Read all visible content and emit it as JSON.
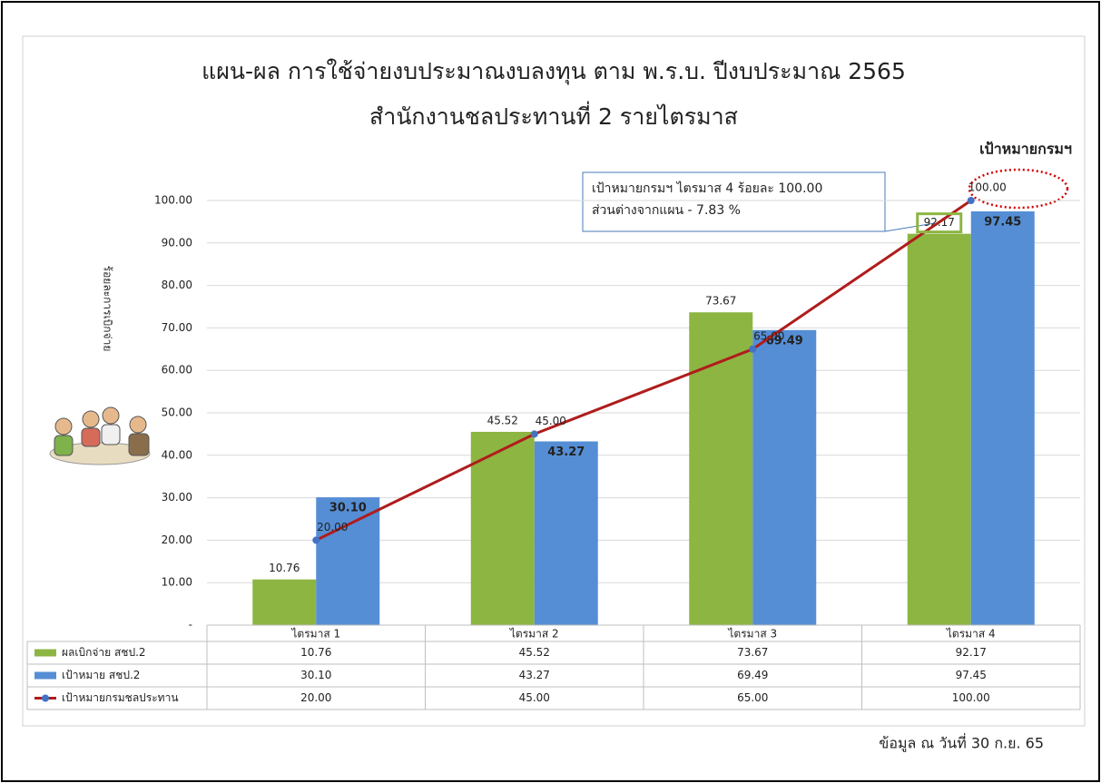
{
  "chart_data": {
    "type": "bar",
    "title": "แผน-ผล การใช้จ่ายงบประมาณงบลงทุน ตาม พ.ร.บ. ปีงบประมาณ 2565",
    "subtitle": "สำนักงานชลประทานที่ 2 รายไตรมาส",
    "y_label": "ร้อยละการเบิกจ่าย",
    "categories": [
      "ไตรมาส 1",
      "ไตรมาส 2",
      "ไตรมาส 3",
      "ไตรมาส 4"
    ],
    "series": [
      {
        "name": "ผลเบิกจ่าย สชป.2",
        "color": "#8db542",
        "values": [
          10.76,
          45.52,
          73.67,
          92.17
        ]
      },
      {
        "name": "เป้าหมาย สชป.2",
        "color": "#558ed5",
        "values": [
          30.1,
          43.27,
          69.49,
          97.45
        ],
        "value_labels": [
          "30.10",
          "43.27",
          "69.49",
          "97.45"
        ]
      },
      {
        "name": "เป้าหมายกรมชลประทาน",
        "color": "#b01c1c",
        "marker_color": "#4472c4",
        "type": "line",
        "values": [
          20,
          45,
          65,
          100
        ],
        "value_labels": [
          "20.00",
          "45.00",
          "65.00",
          "100.00"
        ]
      }
    ],
    "ylim": [
      0,
      100
    ],
    "yticks": [
      {
        "value": 0,
        "label": "-"
      },
      {
        "value": 10,
        "label": "10.00"
      },
      {
        "value": 20,
        "label": "20.00"
      },
      {
        "value": 30,
        "label": "30.00"
      },
      {
        "value": 40,
        "label": "40.00"
      },
      {
        "value": 50,
        "label": "50.00"
      },
      {
        "value": 60,
        "label": "60.00"
      },
      {
        "value": 70,
        "label": "70.00"
      },
      {
        "value": 80,
        "label": "80.00"
      },
      {
        "value": 90,
        "label": "90.00"
      },
      {
        "value": 100,
        "label": "100.00"
      }
    ],
    "grid": true,
    "data_table": true,
    "annotations": [
      "เป้าหมายกรมฯ ไตรมาส 4 ร้อยละ 100.00",
      "ส่วนต่างจากแผน - 7.83 %",
      "เป้าหมายกรมฯ"
    ],
    "footnote": "ข้อมูล ณ วันที่ 30 ก.ย. 65"
  }
}
